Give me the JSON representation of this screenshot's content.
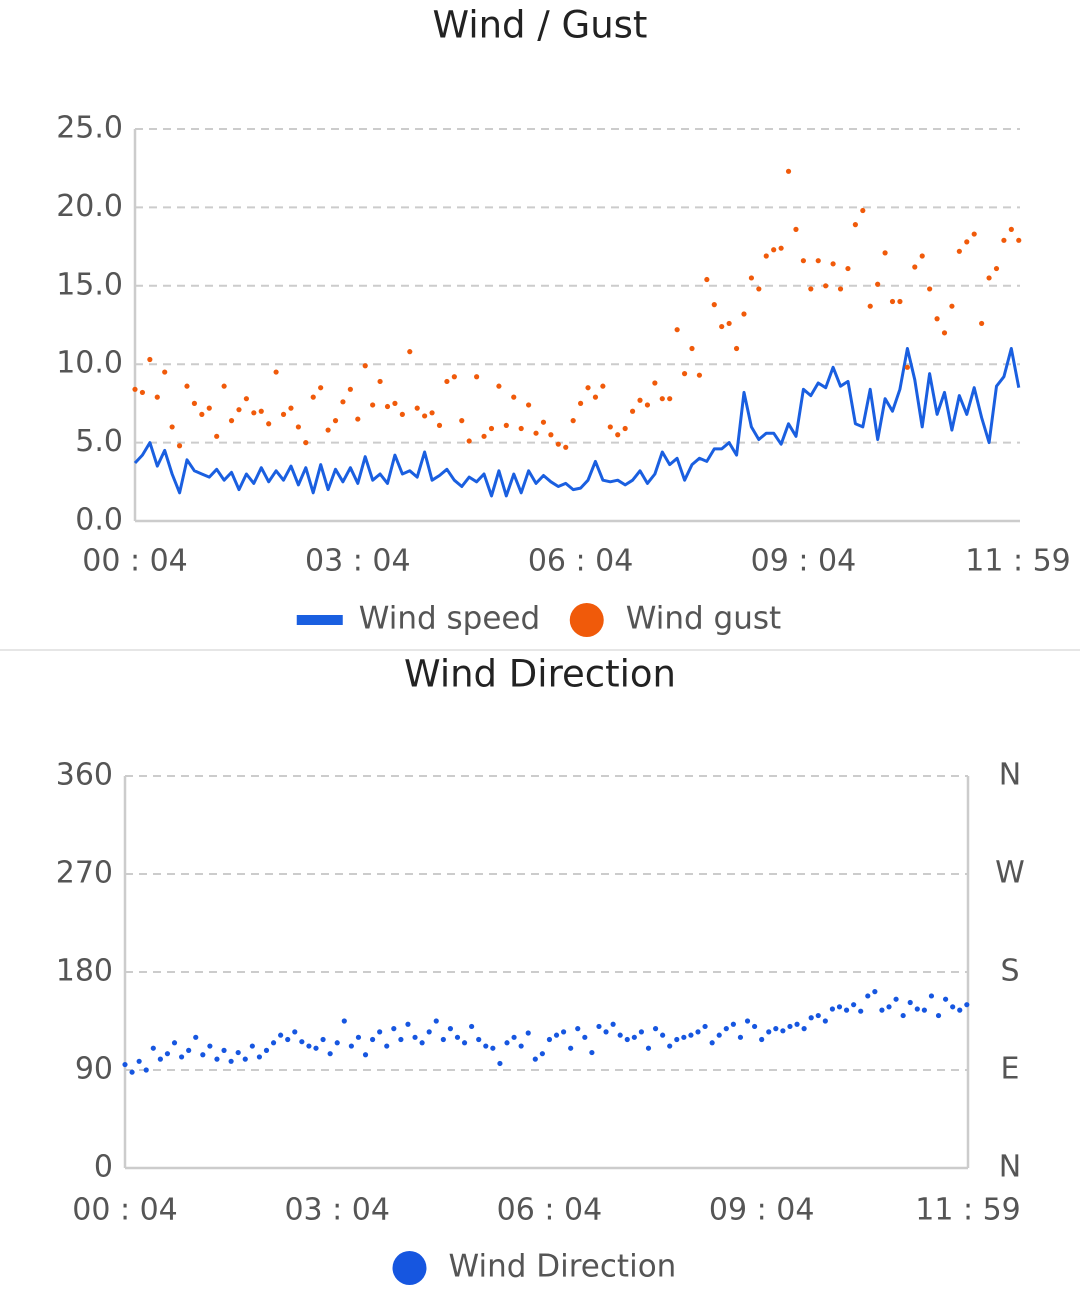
{
  "chart_data": [
    {
      "type": "line",
      "title": "Wind / Gust",
      "x": [
        4,
        10,
        16,
        22,
        28,
        34,
        40,
        46,
        52,
        58,
        64,
        70,
        76,
        82,
        88,
        94,
        100,
        106,
        112,
        118,
        124,
        130,
        136,
        142,
        148,
        154,
        160,
        166,
        172,
        178,
        184,
        190,
        196,
        202,
        208,
        214,
        220,
        226,
        232,
        238,
        244,
        250,
        256,
        262,
        268,
        274,
        280,
        286,
        292,
        298,
        304,
        310,
        316,
        322,
        328,
        334,
        340,
        346,
        352,
        358,
        364,
        370,
        376,
        382,
        388,
        394,
        400,
        406,
        412,
        418,
        424,
        430,
        436,
        442,
        448,
        454,
        460,
        466,
        472,
        478,
        484,
        490,
        496,
        502,
        508,
        514,
        520,
        526,
        532,
        538,
        544,
        550,
        556,
        562,
        568,
        574,
        580,
        586,
        592,
        598,
        604,
        610,
        616,
        622,
        628,
        634,
        640,
        646,
        652,
        658,
        664,
        670,
        676,
        682,
        688,
        694,
        700,
        706,
        712,
        718
      ],
      "xlim": [
        4,
        719
      ],
      "xticks": [
        {
          "value": 4,
          "label": "00 : 04"
        },
        {
          "value": 184,
          "label": "03 : 04"
        },
        {
          "value": 364,
          "label": "06 : 04"
        },
        {
          "value": 544,
          "label": "09 : 04"
        },
        {
          "value": 719,
          "label": "11 : 59"
        }
      ],
      "ylim": [
        0,
        25
      ],
      "yticks": [
        {
          "value": 0,
          "label": "0.0"
        },
        {
          "value": 5,
          "label": "5.0"
        },
        {
          "value": 10,
          "label": "10.0"
        },
        {
          "value": 15,
          "label": "15.0"
        },
        {
          "value": 20,
          "label": "20.0"
        },
        {
          "value": 25,
          "label": "25.0"
        }
      ],
      "grid": true,
      "series": [
        {
          "name": "Wind speed",
          "color": "#1a5fe0",
          "type": "line",
          "values": [
            3.7,
            4.2,
            5.0,
            3.5,
            4.5,
            3.0,
            1.8,
            3.9,
            3.2,
            3.0,
            2.8,
            3.3,
            2.6,
            3.1,
            2.0,
            3.0,
            2.4,
            3.4,
            2.5,
            3.2,
            2.6,
            3.5,
            2.3,
            3.4,
            1.8,
            3.6,
            2.0,
            3.3,
            2.5,
            3.4,
            2.4,
            4.1,
            2.6,
            3.0,
            2.4,
            4.2,
            3.0,
            3.2,
            2.8,
            4.4,
            2.6,
            2.9,
            3.3,
            2.6,
            2.2,
            2.8,
            2.5,
            3.0,
            1.6,
            3.2,
            1.6,
            3.0,
            1.8,
            3.2,
            2.4,
            2.9,
            2.5,
            2.2,
            2.4,
            2.0,
            2.1,
            2.6,
            3.8,
            2.6,
            2.5,
            2.6,
            2.3,
            2.6,
            3.2,
            2.4,
            3.0,
            4.4,
            3.6,
            4.0,
            2.6,
            3.6,
            4.0,
            3.8,
            4.6,
            4.6,
            5.0,
            4.2,
            8.2,
            6.0,
            5.2,
            5.6,
            5.6,
            4.9,
            6.2,
            5.4,
            8.4,
            8.0,
            8.8,
            8.5,
            9.8,
            8.6,
            8.9,
            6.2,
            6.0,
            8.4,
            5.2,
            7.8,
            7.0,
            8.4,
            11.0,
            9.0,
            6.0,
            9.4,
            6.8,
            8.2,
            5.8,
            8.0,
            6.8,
            8.5,
            6.6,
            5.0,
            8.6,
            9.2,
            11.0,
            8.5
          ]
        },
        {
          "name": "Wind gust",
          "color": "#f05a0a",
          "type": "scatter",
          "values": [
            8.4,
            8.2,
            10.3,
            7.9,
            9.5,
            6.0,
            4.8,
            8.6,
            7.5,
            6.8,
            7.2,
            5.4,
            8.6,
            6.4,
            7.1,
            7.8,
            6.9,
            7.0,
            6.2,
            9.5,
            6.8,
            7.2,
            6.0,
            5.0,
            7.9,
            8.5,
            5.8,
            6.4,
            7.6,
            8.4,
            6.5,
            9.9,
            7.4,
            8.9,
            7.3,
            7.5,
            6.8,
            10.8,
            7.2,
            6.7,
            6.9,
            6.1,
            8.9,
            9.2,
            6.4,
            5.1,
            9.2,
            5.4,
            5.9,
            8.6,
            6.1,
            7.9,
            5.9,
            7.4,
            5.6,
            6.3,
            5.5,
            4.9,
            4.7,
            6.4,
            7.5,
            8.5,
            7.9,
            8.6,
            6.0,
            5.5,
            5.9,
            7.0,
            7.7,
            7.4,
            8.8,
            7.8,
            7.8,
            12.2,
            9.4,
            11.0,
            9.3,
            15.4,
            13.8,
            12.4,
            12.6,
            11.0,
            13.2,
            15.5,
            14.8,
            16.9,
            17.3,
            17.4,
            22.3,
            18.6,
            16.6,
            14.8,
            16.6,
            15.0,
            16.4,
            14.8,
            16.1,
            18.9,
            19.8,
            13.7,
            15.1,
            17.1,
            14.0,
            14.0,
            9.8,
            16.2,
            16.9,
            14.8,
            12.9,
            12.0,
            13.7,
            17.2,
            17.8,
            18.3,
            12.6,
            15.5,
            16.1,
            17.9,
            18.6,
            17.9
          ]
        }
      ]
    },
    {
      "type": "scatter",
      "title": "Wind Direction",
      "x": [
        4,
        10,
        16,
        22,
        28,
        34,
        40,
        46,
        52,
        58,
        64,
        70,
        76,
        82,
        88,
        94,
        100,
        106,
        112,
        118,
        124,
        130,
        136,
        142,
        148,
        154,
        160,
        166,
        172,
        178,
        184,
        190,
        196,
        202,
        208,
        214,
        220,
        226,
        232,
        238,
        244,
        250,
        256,
        262,
        268,
        274,
        280,
        286,
        292,
        298,
        304,
        310,
        316,
        322,
        328,
        334,
        340,
        346,
        352,
        358,
        364,
        370,
        376,
        382,
        388,
        394,
        400,
        406,
        412,
        418,
        424,
        430,
        436,
        442,
        448,
        454,
        460,
        466,
        472,
        478,
        484,
        490,
        496,
        502,
        508,
        514,
        520,
        526,
        532,
        538,
        544,
        550,
        556,
        562,
        568,
        574,
        580,
        586,
        592,
        598,
        604,
        610,
        616,
        622,
        628,
        634,
        640,
        646,
        652,
        658,
        664,
        670,
        676,
        682,
        688,
        694,
        700,
        706,
        712,
        718
      ],
      "xlim": [
        4,
        719
      ],
      "xticks": [
        {
          "value": 4,
          "label": "00 : 04"
        },
        {
          "value": 184,
          "label": "03 : 04"
        },
        {
          "value": 364,
          "label": "06 : 04"
        },
        {
          "value": 544,
          "label": "09 : 04"
        },
        {
          "value": 719,
          "label": "11 : 59"
        }
      ],
      "ylim": [
        0,
        360
      ],
      "yticks": [
        0,
        90,
        180,
        270,
        360
      ],
      "y2lim": [
        0,
        360
      ],
      "y2ticks": [
        {
          "value": 0,
          "label": "N"
        },
        {
          "value": 90,
          "label": "E"
        },
        {
          "value": 180,
          "label": "S"
        },
        {
          "value": 270,
          "label": "W"
        },
        {
          "value": 360,
          "label": "N"
        }
      ],
      "grid": true,
      "series": [
        {
          "name": "Wind Direction",
          "color": "#1656e0",
          "type": "scatter",
          "values": [
            95,
            88,
            98,
            90,
            110,
            100,
            105,
            115,
            102,
            108,
            120,
            104,
            112,
            100,
            108,
            98,
            106,
            100,
            112,
            102,
            108,
            115,
            122,
            118,
            125,
            116,
            112,
            110,
            118,
            105,
            115,
            135,
            112,
            120,
            104,
            118,
            125,
            112,
            128,
            118,
            132,
            120,
            115,
            125,
            135,
            118,
            128,
            120,
            115,
            130,
            118,
            112,
            110,
            96,
            115,
            120,
            112,
            124,
            100,
            105,
            118,
            122,
            125,
            110,
            128,
            120,
            106,
            130,
            125,
            132,
            122,
            118,
            120,
            125,
            110,
            128,
            122,
            112,
            118,
            120,
            122,
            125,
            130,
            115,
            122,
            128,
            132,
            120,
            135,
            130,
            118,
            125,
            128,
            126,
            130,
            132,
            128,
            138,
            140,
            135,
            146,
            148,
            145,
            150,
            144,
            158,
            162,
            145,
            148,
            155,
            140,
            152,
            146,
            145,
            158,
            140,
            155,
            148,
            145,
            150
          ]
        }
      ]
    }
  ]
}
